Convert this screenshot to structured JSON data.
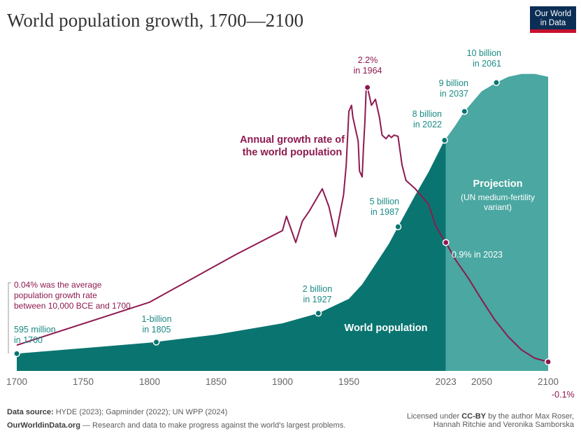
{
  "header": {
    "title": "World population growth, 1700—2100",
    "logo": {
      "line1": "Our World",
      "line2": "in Data"
    }
  },
  "chart_data": {
    "type": "area",
    "title": "World population growth, 1700—2100",
    "xlim": [
      1700,
      2100
    ],
    "x_ticks": [
      "1700",
      "1750",
      "1800",
      "1850",
      "1900",
      "1950",
      "2023",
      "2050",
      "2100"
    ],
    "series": [
      {
        "name": "World population",
        "unit": "billion",
        "points": [
          [
            1700,
            0.6
          ],
          [
            1750,
            0.79
          ],
          [
            1800,
            0.98
          ],
          [
            1850,
            1.26
          ],
          [
            1900,
            1.65
          ],
          [
            1927,
            2.0
          ],
          [
            1950,
            2.5
          ],
          [
            1960,
            3.0
          ],
          [
            1970,
            3.7
          ],
          [
            1980,
            4.4
          ],
          [
            1987,
            5.0
          ],
          [
            2000,
            6.1
          ],
          [
            2010,
            6.9
          ],
          [
            2022,
            8.0
          ],
          [
            2023,
            8.05
          ],
          [
            2030,
            8.5
          ],
          [
            2037,
            9.0
          ],
          [
            2050,
            9.7
          ],
          [
            2061,
            10.0
          ],
          [
            2070,
            10.2
          ],
          [
            2080,
            10.3
          ],
          [
            2090,
            10.3
          ],
          [
            2100,
            10.2
          ]
        ],
        "projection_from": 2023
      },
      {
        "name": "Annual growth rate of the world population",
        "unit": "%",
        "points": [
          [
            1700,
            0.04
          ],
          [
            1800,
            0.4
          ],
          [
            1865,
            0.8
          ],
          [
            1900,
            1.0
          ],
          [
            1903,
            1.12
          ],
          [
            1910,
            0.9
          ],
          [
            1915,
            1.08
          ],
          [
            1920,
            1.16
          ],
          [
            1930,
            1.35
          ],
          [
            1935,
            1.2
          ],
          [
            1940,
            0.95
          ],
          [
            1946,
            1.3
          ],
          [
            1948,
            1.55
          ],
          [
            1950,
            2.0
          ],
          [
            1952,
            2.05
          ],
          [
            1953,
            1.95
          ],
          [
            1955,
            1.85
          ],
          [
            1957,
            1.75
          ],
          [
            1958,
            1.5
          ],
          [
            1960,
            1.45
          ],
          [
            1961,
            1.7
          ],
          [
            1962,
            1.9
          ],
          [
            1963,
            2.18
          ],
          [
            1964,
            2.2
          ],
          [
            1965,
            2.15
          ],
          [
            1967,
            2.05
          ],
          [
            1970,
            2.1
          ],
          [
            1973,
            1.95
          ],
          [
            1975,
            1.8
          ],
          [
            1978,
            1.77
          ],
          [
            1980,
            1.8
          ],
          [
            1982,
            1.78
          ],
          [
            1984,
            1.8
          ],
          [
            1987,
            1.79
          ],
          [
            1990,
            1.55
          ],
          [
            1993,
            1.42
          ],
          [
            2000,
            1.35
          ],
          [
            2010,
            1.22
          ],
          [
            2015,
            1.05
          ],
          [
            2020,
            0.95
          ],
          [
            2023,
            0.9
          ],
          [
            2030,
            0.76
          ],
          [
            2040,
            0.6
          ],
          [
            2050,
            0.42
          ],
          [
            2060,
            0.25
          ],
          [
            2070,
            0.11
          ],
          [
            2080,
            0.0
          ],
          [
            2090,
            -0.07
          ],
          [
            2100,
            -0.1
          ]
        ]
      }
    ],
    "annotations": {
      "p1700": "595 million\nin 1700",
      "p1805": "1-billion\nin 1805",
      "p1927": "2 billion\nin 1927",
      "p1987": "5 billion\nin 1987",
      "p2022": "8 billion\nin 2022",
      "p2037": "9 billion\nin 2037",
      "p2061": "10 billion\nin 2061",
      "g1964": "2.2%\nin 1964",
      "g2023": "0.9% in 2023",
      "g2100": "-0.1%",
      "g_label": "Annual growth rate of\nthe world population",
      "g_avg": "0.04% was the average\npopulation growth rate\nbetween 10,000 BCE and 1700",
      "pop_label": "World population",
      "proj_title": "Projection",
      "proj_sub": "(UN medium-fertility\nvariant)"
    },
    "colors": {
      "population": "#0a7570",
      "projection": "#4aa7a1",
      "growth": "#8d1a50",
      "teal_text": "#1a8a84"
    }
  },
  "footer": {
    "source_label": "Data source:",
    "source_text": "HYDE (2023); Gapminder (2022); UN WPP (2024)",
    "site": "OurWorldinData.org",
    "site_text": "— Research and data to make progress against the world's largest problems.",
    "license_pre": "Licensed under",
    "license_bold": "CC-BY",
    "license_post": "by the author Max Roser,",
    "license_line2": "Hannah Ritchie and Veronika Samborska"
  }
}
